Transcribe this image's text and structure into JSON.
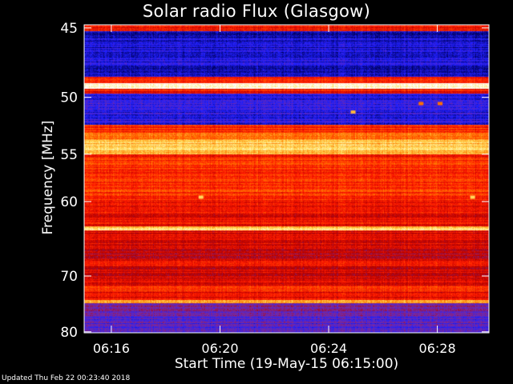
{
  "chart_data": {
    "type": "heatmap",
    "title": "Solar radio Flux (Glasgow)",
    "xlabel": "Start Time (19-May-15 06:15:00)",
    "ylabel": "Frequency [MHz]",
    "x_ticks": [
      {
        "label": "06:16",
        "minutes": 1
      },
      {
        "label": "06:20",
        "minutes": 5
      },
      {
        "label": "06:24",
        "minutes": 9
      },
      {
        "label": "06:28",
        "minutes": 13
      }
    ],
    "xlim_minutes": [
      0,
      14.9
    ],
    "y_ticks": [
      45,
      50,
      55,
      60,
      70,
      80
    ],
    "ylim_mhz": [
      44.8,
      80.2
    ],
    "y_scale": "reciprocal",
    "colormap": [
      "#000060",
      "#2020ff",
      "#7a2aa0",
      "#b00000",
      "#ff1a00",
      "#ff7a00",
      "#ffe060",
      "#ffffff"
    ],
    "bands": [
      {
        "from_mhz": 44.8,
        "to_mhz": 45.2,
        "level": 0.55
      },
      {
        "from_mhz": 45.2,
        "to_mhz": 48.4,
        "level": 0.1
      },
      {
        "from_mhz": 48.4,
        "to_mhz": 48.9,
        "level": 0.55
      },
      {
        "from_mhz": 48.9,
        "to_mhz": 49.3,
        "level": 0.98
      },
      {
        "from_mhz": 49.3,
        "to_mhz": 49.7,
        "level": 0.55
      },
      {
        "from_mhz": 49.7,
        "to_mhz": 52.3,
        "level": 0.14
      },
      {
        "from_mhz": 52.3,
        "to_mhz": 52.9,
        "level": 0.6
      },
      {
        "from_mhz": 52.9,
        "to_mhz": 53.6,
        "level": 0.7
      },
      {
        "from_mhz": 53.6,
        "to_mhz": 55.0,
        "level": 0.82
      },
      {
        "from_mhz": 55.0,
        "to_mhz": 60.0,
        "level": 0.6
      },
      {
        "from_mhz": 60.0,
        "to_mhz": 63.0,
        "level": 0.52
      },
      {
        "from_mhz": 63.0,
        "to_mhz": 63.5,
        "level": 0.85
      },
      {
        "from_mhz": 63.5,
        "to_mhz": 66.0,
        "level": 0.5
      },
      {
        "from_mhz": 66.0,
        "to_mhz": 67.5,
        "level": 0.42
      },
      {
        "from_mhz": 67.5,
        "to_mhz": 68.5,
        "level": 0.55
      },
      {
        "from_mhz": 68.5,
        "to_mhz": 71.5,
        "level": 0.48
      },
      {
        "from_mhz": 71.5,
        "to_mhz": 72.5,
        "level": 0.62
      },
      {
        "from_mhz": 72.5,
        "to_mhz": 74.0,
        "level": 0.52
      },
      {
        "from_mhz": 74.0,
        "to_mhz": 74.6,
        "level": 0.72
      },
      {
        "from_mhz": 74.6,
        "to_mhz": 77.0,
        "level": 0.3
      },
      {
        "from_mhz": 77.0,
        "to_mhz": 80.2,
        "level": 0.22
      }
    ],
    "hot_spots": [
      {
        "minutes": 4.3,
        "mhz": 59.5,
        "level": 0.85
      },
      {
        "minutes": 14.3,
        "mhz": 59.5,
        "level": 0.85
      },
      {
        "minutes": 9.9,
        "mhz": 51.2,
        "level": 0.8
      },
      {
        "minutes": 12.4,
        "mhz": 50.5,
        "level": 0.7
      },
      {
        "minutes": 13.1,
        "mhz": 50.5,
        "level": 0.7
      }
    ]
  },
  "footer": {
    "updated": "Updated Thu Feb 22 00:23:40 2018"
  }
}
